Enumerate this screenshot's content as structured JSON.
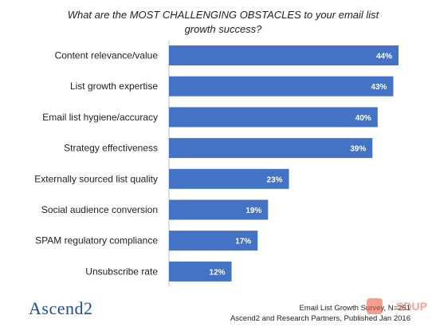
{
  "chart_data": {
    "type": "bar",
    "orientation": "horizontal",
    "title": "What are the MOST CHALLENGING OBSTACLES to your email list growth success?",
    "categories": [
      "Content relevance/value",
      "List growth expertise",
      "Email list hygiene/accuracy",
      "Strategy effectiveness",
      "Externally sourced list quality",
      "Social audience conversion",
      "SPAM regulatory compliance",
      "Unsubscribe rate"
    ],
    "values": [
      44,
      43,
      40,
      39,
      23,
      19,
      17,
      12
    ],
    "data_labels": [
      "44%",
      "43%",
      "40%",
      "39%",
      "23%",
      "19%",
      "17%",
      "12%"
    ],
    "xlim": [
      0,
      50
    ],
    "grid": false,
    "legend": "none",
    "bar_color": "#4472c4"
  },
  "footer": {
    "logo_text": "Ascend2",
    "source_line1": "Email List Growth Survey, N=251",
    "source_line2": "Ascend2 and Research Partners, Published Jan 2016"
  },
  "watermark": {
    "text": "SDUP",
    "icon": "watermark-logo-icon"
  }
}
